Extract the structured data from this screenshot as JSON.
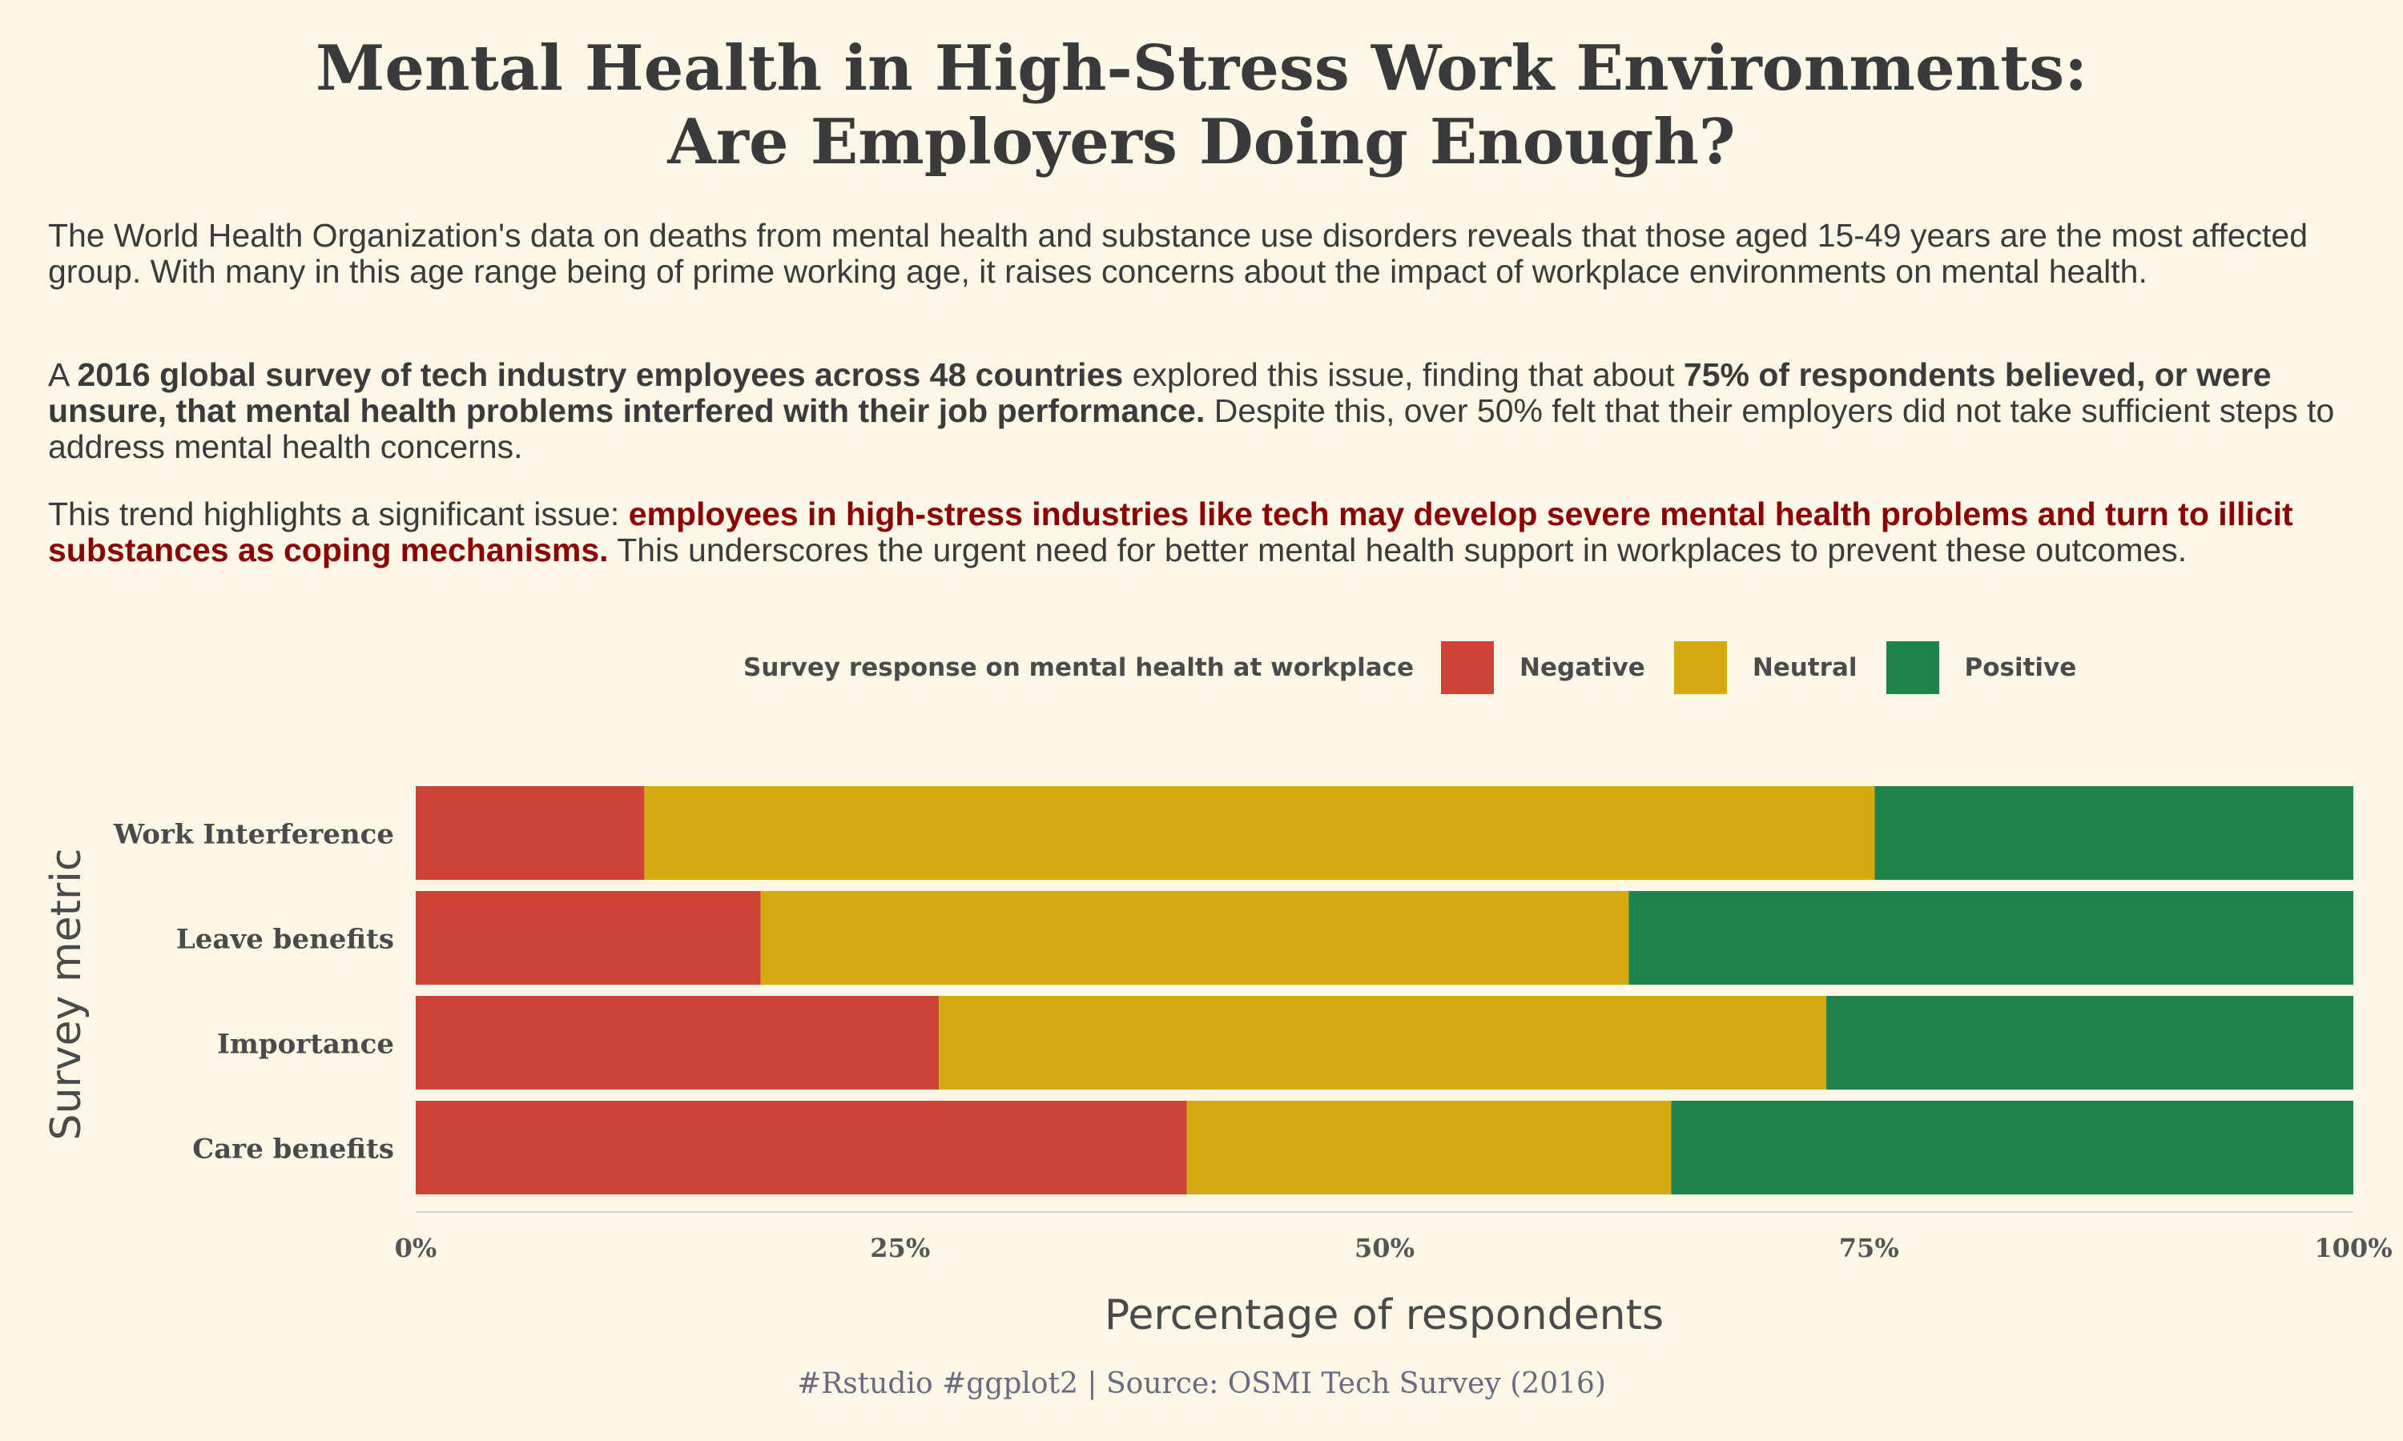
{
  "title_line1": "Mental Health in High-Stress Work Environments:",
  "title_line2": "Are Employers Doing Enough?",
  "para1": "The World Health Organization's data on deaths from mental health and substance use disorders reveals that those aged 15-49 years are the most affected group. With many in this age range being of prime working age, it raises concerns about the impact of workplace environments on mental health.",
  "para2_a": "A ",
  "para2_b": "2016 global survey of tech industry employees across 48 countries",
  "para2_c": " explored this issue, finding that about  ",
  "para2_d": "75% of respondents believed, or were unsure, that mental health problems interfered with their job performance.",
  "para2_e": " Despite this, over 50% felt that their employers did not take sufficient steps to address mental health concerns.",
  "para3_a": "This trend highlights a significant issue: ",
  "para3_b": "employees in high-stress industries like tech may develop severe mental health problems and turn to illicit substances as coping mechanisms.",
  "para3_c": " This underscores the urgent need for better mental health support in workplaces to prevent these outcomes.",
  "legend": {
    "title": "Survey response on mental health at workplace",
    "items": [
      {
        "label": "Negative",
        "color": "#cc4436"
      },
      {
        "label": "Neutral",
        "color": "#d4aa10"
      },
      {
        "label": "Positive",
        "color": "#1f8449"
      }
    ]
  },
  "chart_data": {
    "type": "bar",
    "orientation": "horizontal",
    "stacked": true,
    "categories": [
      "Work Interference",
      "Leave benefits",
      "Importance",
      "Care benefits"
    ],
    "series": [
      {
        "name": "Negative",
        "color": "#cc4436",
        "values": [
          11.8,
          17.8,
          27.0,
          39.8
        ]
      },
      {
        "name": "Neutral",
        "color": "#d4aa10",
        "values": [
          63.5,
          44.8,
          45.8,
          25.0
        ]
      },
      {
        "name": "Positive",
        "color": "#1f8449",
        "values": [
          24.7,
          37.4,
          27.2,
          35.2
        ]
      }
    ],
    "xlabel": "Percentage of respondents",
    "ylabel": "Survey metric",
    "xlim": [
      0,
      100
    ],
    "xticks": [
      "0%",
      "25%",
      "50%",
      "75%",
      "100%"
    ],
    "legend_position": "top",
    "grid": false
  },
  "caption": "#Rstudio #ggplot2 |  Source: OSMI Tech Survey (2016)"
}
